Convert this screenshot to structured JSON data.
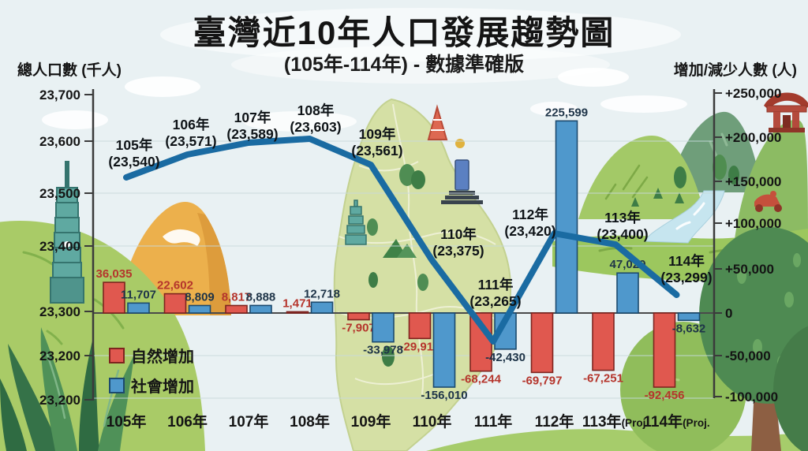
{
  "title": "臺灣近10年人口發展趨勢圖",
  "subtitle": "(105年-114年) - 數據準確版",
  "left_axis": {
    "title": "總人口數 (千人)",
    "ticks": [
      "23,700",
      "23,600",
      "23,500",
      "23,400",
      "23,300",
      "23,200",
      "23,200"
    ]
  },
  "right_axis": {
    "title": "增加/減少人數 (人)",
    "ticks": [
      "+250,000",
      "+200,000",
      "+150,000",
      "+100,000",
      "+50,000",
      "0",
      "-50,000",
      "-100,000"
    ]
  },
  "legend": [
    {
      "label": "自然增加",
      "color": "#e0584f",
      "border": "#7e241f"
    },
    {
      "label": "社會增加",
      "color": "#4f98cc",
      "border": "#1c4a6e"
    }
  ],
  "chart_data": {
    "type": "combo-bar-line",
    "categories": [
      "105年",
      "106年",
      "107年",
      "108年",
      "109年",
      "110年",
      "111年",
      "112年",
      "113年",
      "114年"
    ],
    "x_tick_labels": [
      {
        "main": "105年",
        "suffix": ""
      },
      {
        "main": "106年",
        "suffix": ""
      },
      {
        "main": "107年",
        "suffix": ""
      },
      {
        "main": "108年",
        "suffix": ""
      },
      {
        "main": "109年",
        "suffix": ""
      },
      {
        "main": "110年",
        "suffix": ""
      },
      {
        "main": "111年",
        "suffix": ""
      },
      {
        "main": "112年",
        "suffix": ""
      },
      {
        "main": "113年",
        "suffix": "(Proj."
      },
      {
        "main": "114年",
        "suffix": "(Proj."
      }
    ],
    "line_series": {
      "name": "總人口數",
      "unit": "千人",
      "values": [
        23540,
        23571,
        23589,
        23603,
        23561,
        23375,
        23265,
        23420,
        23400,
        23299
      ],
      "color": "#1a6ba2",
      "label_color": "#0e1317"
    },
    "bar_series": [
      {
        "name": "自然增加",
        "color": "#e0584f",
        "border": "#7e241f",
        "label_color": "#b5352c",
        "values": [
          36035,
          22602,
          8817,
          1471,
          -7907,
          -29912,
          -68244,
          -69797,
          -67251,
          -92456
        ]
      },
      {
        "name": "社會增加",
        "color": "#4f98cc",
        "border": "#1c4a6e",
        "label_color": "#1e3448",
        "values": [
          11707,
          8809,
          8888,
          12718,
          -33978,
          -156010,
          -42430,
          225599,
          47029,
          -8632
        ]
      }
    ],
    "right_axis_range": [
      -100000,
      250000
    ],
    "left_axis_range_displayed": [
      23200,
      23700
    ],
    "grid": true,
    "legend_position": "bottom-left"
  },
  "decorations": [
    "cloud",
    "taipei-101-tower",
    "camping-tent",
    "left-hill",
    "taiwan-island-map",
    "red-tower",
    "blue-skyscraper",
    "pagoda",
    "mountain",
    "temple-gate",
    "river",
    "meadow",
    "scooter",
    "trees",
    "bottom-hill",
    "aloe-plant"
  ]
}
